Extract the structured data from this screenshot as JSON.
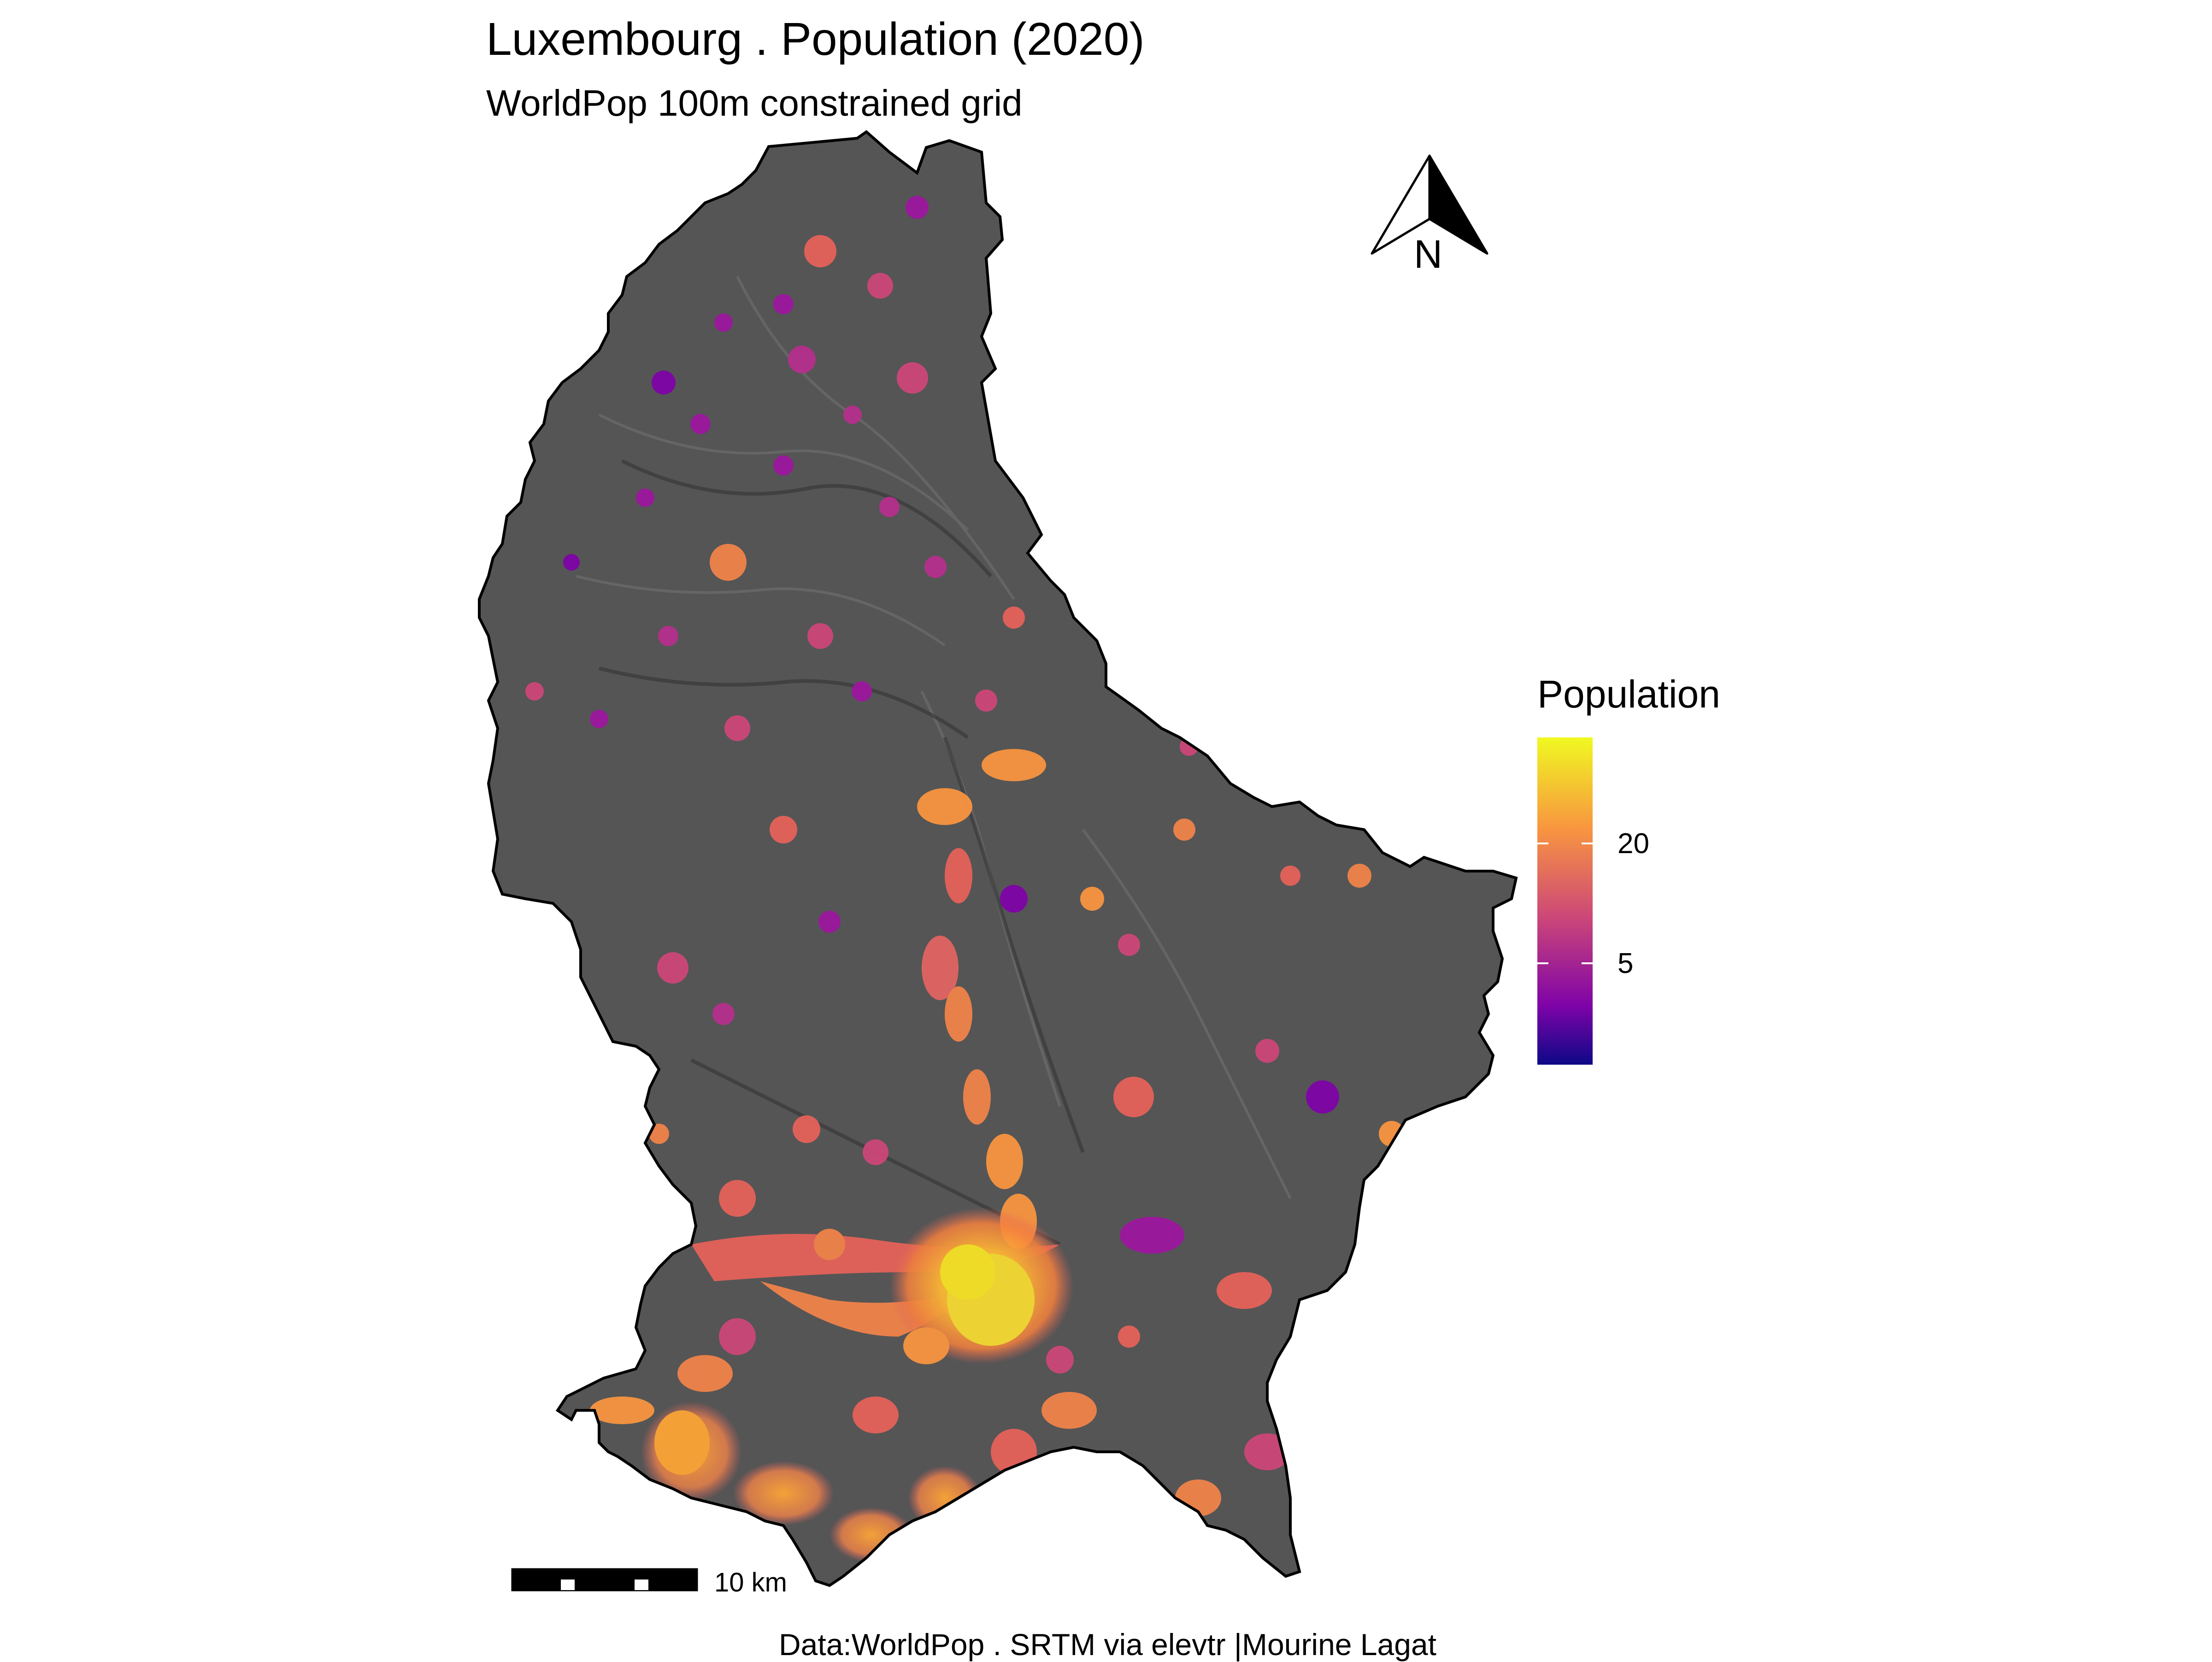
{
  "title": "Luxembourg . Population (2020)",
  "subtitle": "WorldPop 100m constrained grid",
  "caption": "Data:WorldPop . SRTM via elevtr |Mourine Lagat",
  "north_arrow": {
    "icon": "north-arrow-icon",
    "label": "N"
  },
  "scale_bar": {
    "label": "10 km",
    "segments": 5
  },
  "legend": {
    "title": "Population",
    "ticks": [
      {
        "value": 20,
        "label": "20"
      },
      {
        "value": 5,
        "label": "5"
      }
    ],
    "palette": [
      "#0d0887",
      "#7e03a8",
      "#cc4778",
      "#f89540",
      "#f0f921"
    ]
  },
  "map": {
    "region": "Luxembourg",
    "basemap_color": "#505050",
    "border_color": "#000000"
  }
}
